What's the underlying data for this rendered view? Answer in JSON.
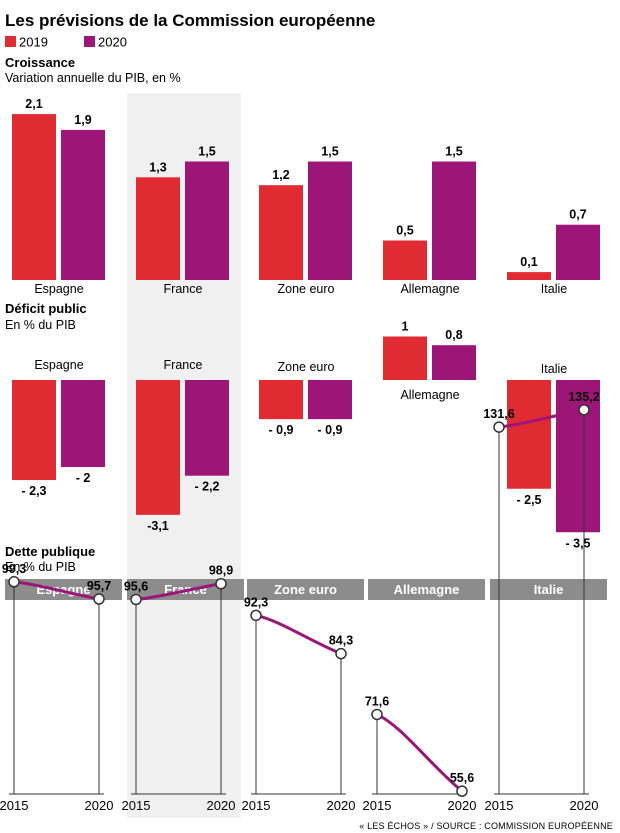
{
  "title": "Les prévisions de la Commission européenne",
  "source": "« LES ÉCHOS » / SOURCE : COMMISSION EUROPÉENNE",
  "colors": {
    "y2019": "#e02b33",
    "y2020": "#9c1577",
    "highlight": "#f0f0f0",
    "header": "#8c8c8c",
    "axis": "#333333"
  },
  "legend": [
    {
      "label": "2019",
      "color": "#e02b33"
    },
    {
      "label": "2020",
      "color": "#9c1577"
    }
  ],
  "chart_data": [
    {
      "type": "bar",
      "title": "Croissance",
      "subtitle": "Variation annuelle du PIB, en %",
      "categories": [
        "Espagne",
        "France",
        "Zone euro",
        "Allemagne",
        "Italie"
      ],
      "series": [
        {
          "name": "2019",
          "values": [
            2.1,
            1.3,
            1.2,
            0.5,
            0.1
          ],
          "labels": [
            "2,1",
            "1,3",
            "1,2",
            "0,5",
            "0,1"
          ]
        },
        {
          "name": "2020",
          "values": [
            1.9,
            1.5,
            1.5,
            1.5,
            0.7
          ],
          "labels": [
            "1,9",
            "1,5",
            "1,5",
            "1,5",
            "0,7"
          ]
        }
      ]
    },
    {
      "type": "bar",
      "title": "Déficit public",
      "subtitle": "En % du PIB",
      "categories": [
        "Espagne",
        "France",
        "Zone euro",
        "Allemagne",
        "Italie"
      ],
      "series": [
        {
          "name": "2019",
          "values": [
            -2.3,
            -3.1,
            -0.9,
            1.0,
            -2.5
          ],
          "labels": [
            "- 2,3",
            "-3,1",
            "- 0,9",
            "1",
            "- 2,5"
          ]
        },
        {
          "name": "2020",
          "values": [
            -2.0,
            -2.2,
            -0.9,
            0.8,
            -3.5
          ],
          "labels": [
            "- 2",
            "- 2,2",
            "- 0,9",
            "0,8",
            "- 3,5"
          ]
        }
      ]
    },
    {
      "type": "line",
      "title": "Dette publique",
      "subtitle": "En % du PIB",
      "categories": [
        "Espagne",
        "France",
        "Zone euro",
        "Allemagne",
        "Italie"
      ],
      "x": [
        "2015",
        "2020"
      ],
      "series": [
        {
          "name": "Espagne",
          "values": [
            99.3,
            95.7
          ],
          "labels": [
            "99,3",
            "95,7"
          ]
        },
        {
          "name": "France",
          "values": [
            95.6,
            98.9
          ],
          "labels": [
            "95,6",
            "98,9"
          ]
        },
        {
          "name": "Zone euro",
          "values": [
            92.3,
            84.3
          ],
          "labels": [
            "92,3",
            "84,3"
          ]
        },
        {
          "name": "Allemagne",
          "values": [
            71.6,
            55.6
          ],
          "labels": [
            "71,6",
            "55,6"
          ]
        },
        {
          "name": "Italie",
          "values": [
            131.6,
            135.2
          ],
          "labels": [
            "131,6",
            "135,2"
          ]
        }
      ]
    }
  ]
}
